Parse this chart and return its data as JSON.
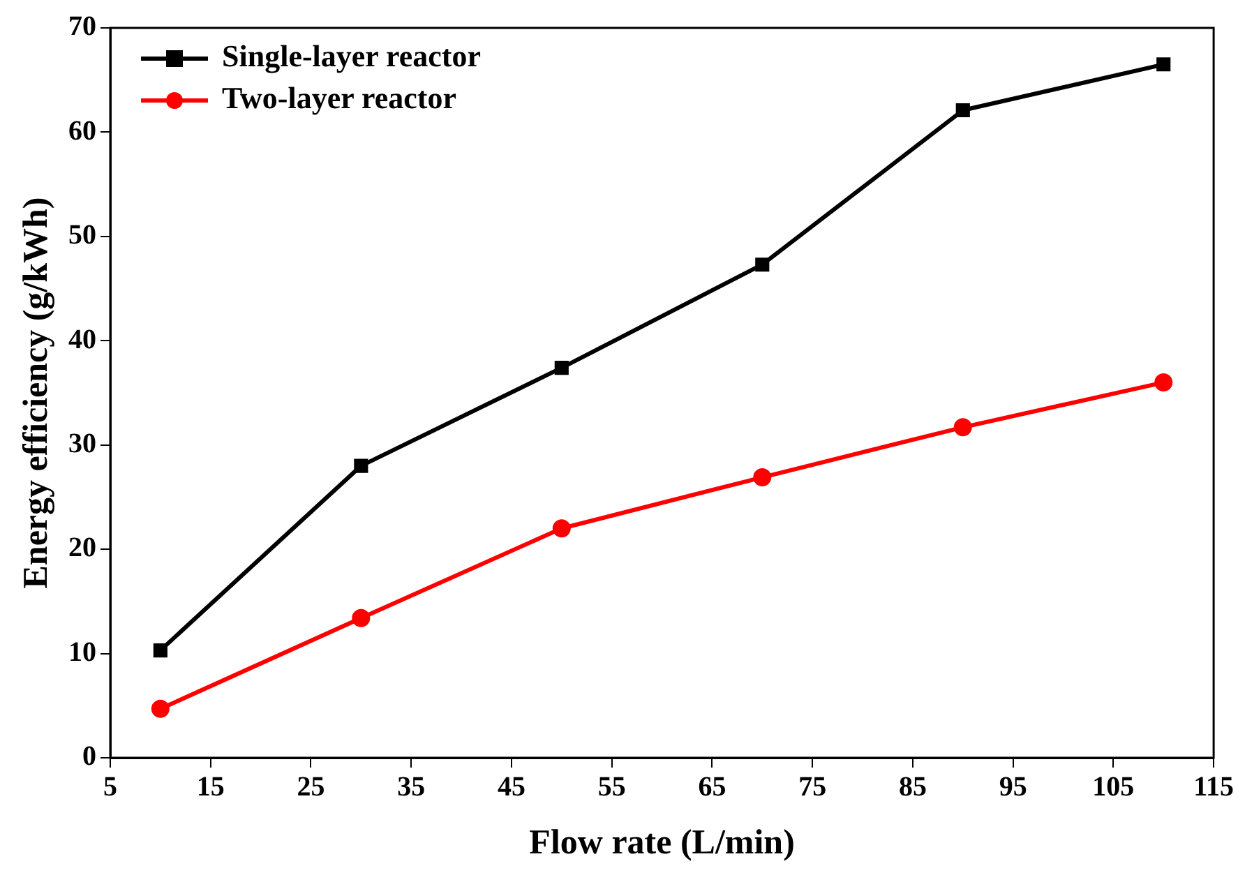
{
  "chart_data": {
    "type": "line",
    "xlabel": "Flow rate (L/min)",
    "ylabel": "Energy efficiency (g/kWh)",
    "xlim": [
      5,
      115
    ],
    "xticks": [
      5,
      15,
      25,
      35,
      45,
      55,
      65,
      75,
      85,
      95,
      105,
      115
    ],
    "ylim": [
      0,
      70
    ],
    "yticks": [
      0,
      10,
      20,
      30,
      40,
      50,
      60,
      70
    ],
    "grid": false,
    "legend": "top left",
    "line_style": "solid",
    "x": [
      10,
      30,
      50,
      70,
      90,
      110
    ],
    "series": [
      {
        "name": "Single-layer reactor",
        "color": "#000000",
        "marker": "square",
        "values": [
          10.3,
          28,
          37.4,
          47.3,
          62.1,
          66.5
        ]
      },
      {
        "name": "Two-layer reactor",
        "color": "#ff0000",
        "marker": "circle",
        "values": [
          4.7,
          13.4,
          22,
          26.9,
          31.7,
          36
        ]
      }
    ]
  }
}
